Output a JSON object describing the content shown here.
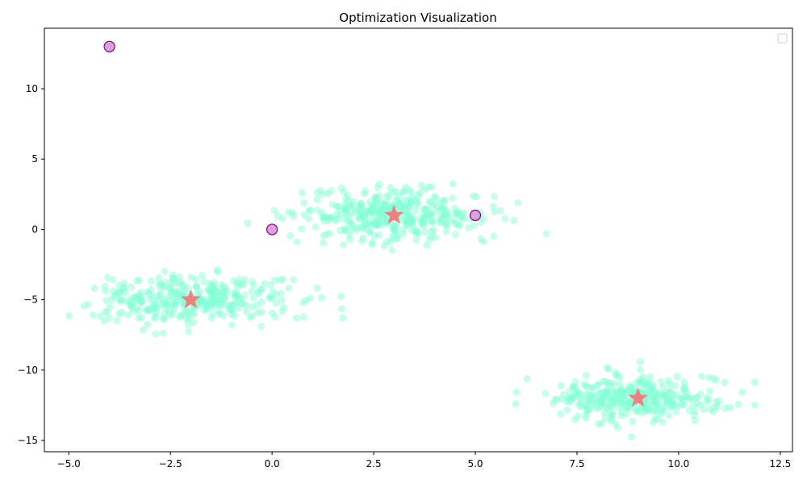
{
  "chart_data": {
    "type": "scatter",
    "title": "Optimization Visualization",
    "xlabel": "",
    "ylabel": "",
    "xlim": [
      -5.6,
      12.8
    ],
    "ylim": [
      -15.8,
      14.3
    ],
    "x_ticks": [
      -5.0,
      -2.5,
      0.0,
      2.5,
      5.0,
      7.5,
      10.0,
      12.5
    ],
    "x_tick_labels": [
      "−5.0",
      "−2.5",
      "0.0",
      "2.5",
      "5.0",
      "7.5",
      "10.0",
      "12.5"
    ],
    "y_ticks": [
      -15,
      -10,
      -5,
      0,
      5,
      10
    ],
    "y_tick_labels": [
      "−15",
      "−10",
      "−5",
      "0",
      "5",
      "10"
    ],
    "grid": false,
    "legend": {
      "placement": "upper-right",
      "entries": []
    },
    "colors": {
      "scatter_fill": "#7fffd4",
      "center_star": "#f08080",
      "marker_fill": "#dda0dd",
      "marker_edge": "#800080"
    },
    "clusters": [
      {
        "center": [
          -2.0,
          -5.0
        ],
        "x_std": 1.2,
        "y_std": 0.85,
        "count": 330
      },
      {
        "center": [
          3.0,
          1.0
        ],
        "x_std": 1.2,
        "y_std": 0.95,
        "count": 360
      },
      {
        "center": [
          9.0,
          -12.0
        ],
        "x_std": 1.05,
        "y_std": 0.85,
        "count": 330
      }
    ],
    "centers": [
      {
        "x": -2.0,
        "y": -5.0
      },
      {
        "x": 3.0,
        "y": 1.0
      },
      {
        "x": 9.0,
        "y": -12.0
      }
    ],
    "highlight_points": [
      {
        "x": -4.0,
        "y": 13.0
      },
      {
        "x": 0.0,
        "y": 0.0
      },
      {
        "x": 5.0,
        "y": 1.0
      }
    ]
  }
}
